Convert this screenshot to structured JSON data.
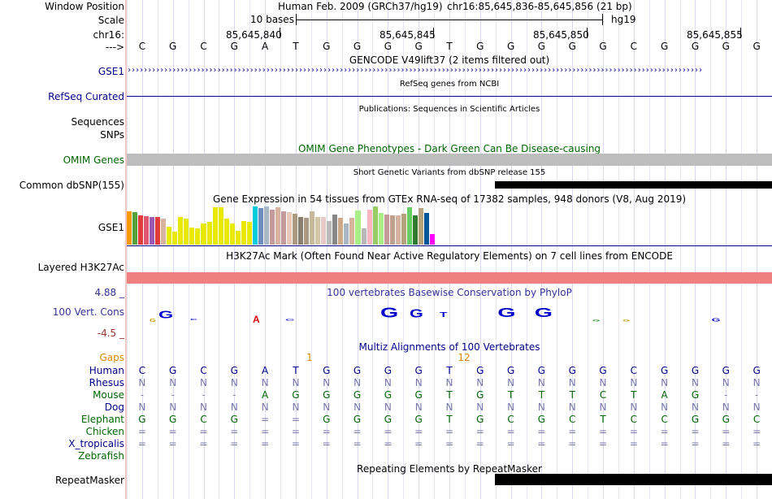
{
  "labels": {
    "window_position": "Window Position",
    "scale": "Scale",
    "chrom": "chr16:",
    "arrow": "--->",
    "gse1_gencode": "GSE1",
    "refseq_curated": "RefSeq Curated",
    "sequences": "Sequences",
    "snps": "SNPs",
    "omim_genes": "OMIM Genes",
    "common_dbsnp": "Common dbSNP(155)",
    "gse1_gtex": "GSE1",
    "layered_h3k27ac": "Layered H3K27Ac",
    "cons_max": "4.88 _",
    "cons_label": "100 Vert. Cons",
    "cons_min": "-4.5 _",
    "gaps": "Gaps",
    "repeatmasker": "RepeatMasker"
  },
  "header": {
    "assembly_title": "Human Feb. 2009 (GRCh37/hg19)",
    "position_title": "chr16:85,645,836-85,645,856 (21 bp)",
    "scale_text": "10 bases",
    "assembly_short": "hg19",
    "ruler": [
      "85,645,840",
      "85,645,845",
      "85,645,850",
      "85,645,855"
    ]
  },
  "sequence": [
    "C",
    "G",
    "C",
    "G",
    "A",
    "T",
    "G",
    "G",
    "G",
    "G",
    "T",
    "G",
    "G",
    "G",
    "G",
    "G",
    "C",
    "G",
    "G",
    "G",
    "G"
  ],
  "tracks": {
    "gencode_title": "GENCODE V49lift37 (2 items filtered out)",
    "refseq_title": "RefSeq genes from NCBI",
    "publications_title": "Publications: Sequences in Scientific Articles",
    "omim_title": "OMIM Gene Phenotypes - Dark Green Can Be Disease-causing",
    "dbsnp_title": "Short Genetic Variants from dbSNP release 155",
    "gtex_title": "Gene Expression in 54 tissues from GTEx RNA-seq of 17382 samples, 948 donors (V8, Aug 2019)",
    "h3k27ac_title": "H3K27Ac Mark (Often Found Near Active Regulatory Elements) on 7 cell lines from ENCODE",
    "cons_title": "100 vertebrates Basewise Conservation by PhyloP",
    "multiz_title": "Multiz Alignments of 100 Vertebrates",
    "repeat_title": "Repeating Elements by RepeatMasker"
  },
  "gtex": {
    "values": [
      0.88,
      0.86,
      0.76,
      0.74,
      0.72,
      0.73,
      0.69,
      0.46,
      0.35,
      0.73,
      0.68,
      0.45,
      0.42,
      0.56,
      0.6,
      0.98,
      0.98,
      0.68,
      0.56,
      0.37,
      0.62,
      0.59,
      0.99,
      0.96,
      0.99,
      0.92,
      0.98,
      0.88,
      0.85,
      0.8,
      0.72,
      0.7,
      0.88,
      0.73,
      0.72,
      0.62,
      0.78,
      0.7,
      0.55,
      0.7,
      0.9,
      0.42,
      0.92,
      1.0,
      0.84,
      0.79,
      0.76,
      0.76,
      0.81,
      0.97,
      0.76,
      0.96,
      0.84,
      0.28
    ],
    "colors": [
      "#ff9900",
      "#54a13b",
      "#e03c3c",
      "#e0576f",
      "#9b59b6",
      "#e03c3c",
      "#d8b2a0",
      "#e8e800",
      "#e8e800",
      "#e8e800",
      "#e8e800",
      "#e8e800",
      "#e8e800",
      "#e8e800",
      "#e8e800",
      "#e8e800",
      "#e8e800",
      "#e8e800",
      "#e8e800",
      "#e8e800",
      "#e8e800",
      "#e8e800",
      "#00ccdd",
      "#6c8ebf",
      "#aab8c6",
      "#c49a9a",
      "#d8b2a0",
      "#c49a9a",
      "#e8c8b8",
      "#aa9980",
      "#8a7f6f",
      "#aa9980",
      "#c8b89a",
      "#d6c6a8",
      "#e8c8c8",
      "#bbbbbb",
      "#888888",
      "#ccaa88",
      "#aab8c6",
      "#d6b39c",
      "#aaee88",
      "#b8b8b8",
      "#ffb6c1",
      "#99cc66",
      "#aaee88",
      "#c49a9a",
      "#bfa08f",
      "#d8b2a0",
      "#b5a17c",
      "#66cc66",
      "#2f7a2f",
      "#b5a17c",
      "#005599",
      "#ff00ff"
    ]
  },
  "gaps": {
    "values": [
      "1",
      "12"
    ]
  },
  "alignments": [
    {
      "name": "Human",
      "color": "#000088",
      "bases": [
        "C",
        "G",
        "C",
        "G",
        "A",
        "T",
        "G",
        "G",
        "G",
        "G",
        "T",
        "G",
        "G",
        "G",
        "G",
        "G",
        "C",
        "G",
        "G",
        "G",
        "G"
      ]
    },
    {
      "name": "Rhesus",
      "color": "#000088",
      "bases": [
        "N",
        "N",
        "N",
        "N",
        "N",
        "N",
        "N",
        "N",
        "N",
        "N",
        "N",
        "N",
        "N",
        "N",
        "N",
        "N",
        "N",
        "N",
        "N",
        "N",
        "N"
      ]
    },
    {
      "name": "Mouse",
      "color": "#006600",
      "bases": [
        "-",
        "-",
        "-",
        "-",
        "A",
        "G",
        "G",
        "G",
        "G",
        "G",
        "T",
        "G",
        "T",
        "T",
        "T",
        "C",
        "T",
        "A",
        "G",
        "-",
        "-"
      ]
    },
    {
      "name": "Dog",
      "color": "#000088",
      "bases": [
        "N",
        "N",
        "N",
        "N",
        "N",
        "N",
        "N",
        "N",
        "N",
        "N",
        "N",
        "N",
        "N",
        "N",
        "N",
        "N",
        "N",
        "N",
        "N",
        "N",
        "N"
      ]
    },
    {
      "name": "Elephant",
      "color": "#006600",
      "bases": [
        "G",
        "G",
        "C",
        "G",
        "=",
        "=",
        "G",
        "G",
        "G",
        "G",
        "T",
        "G",
        "C",
        "G",
        "C",
        "T",
        "C",
        "C",
        "G",
        "G",
        "C"
      ]
    },
    {
      "name": "Chicken",
      "color": "#006600",
      "bases": [
        "=",
        "=",
        "=",
        "=",
        "=",
        "=",
        "=",
        "=",
        "=",
        "=",
        "=",
        "=",
        "=",
        "=",
        "=",
        "=",
        "=",
        "=",
        "=",
        "=",
        "="
      ]
    },
    {
      "name": "X_tropicalis",
      "color": "#000088",
      "bases": [
        "=",
        "=",
        "=",
        "=",
        "=",
        "=",
        "=",
        "=",
        "=",
        "=",
        "=",
        "=",
        "=",
        "=",
        "=",
        "=",
        "=",
        "=",
        "=",
        "=",
        "="
      ]
    },
    {
      "name": "Zebrafish",
      "color": "#006600",
      "bases": []
    }
  ],
  "colors": {
    "navy": "#000088",
    "omim_green": "#006600",
    "gaps_orange": "#dd8800",
    "cons_blue": "#333399",
    "h3k27ac": "#f08080",
    "separator": "#f3c7c7"
  }
}
